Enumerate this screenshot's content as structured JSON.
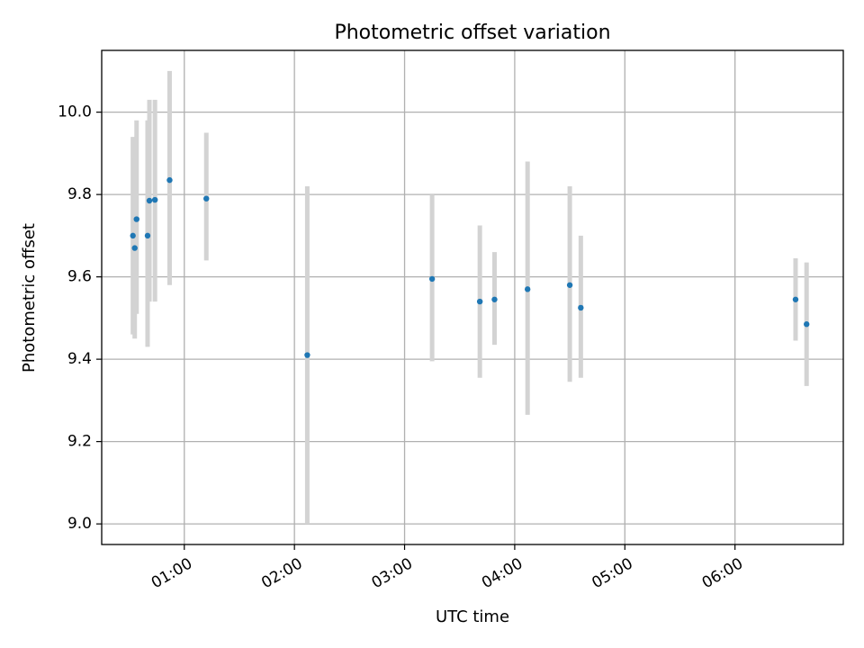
{
  "chart_data": {
    "type": "scatter",
    "title": "Photometric offset variation",
    "xlabel": "UTC time",
    "ylabel": "Photometric offset",
    "xlim": [
      "00:15",
      "06:59"
    ],
    "ylim": [
      8.95,
      10.15
    ],
    "grid": true,
    "x_ticks": [
      "01:00",
      "02:00",
      "03:00",
      "04:00",
      "05:00",
      "06:00"
    ],
    "y_ticks": [
      "9.0",
      "9.2",
      "9.4",
      "9.6",
      "9.8",
      "10.0"
    ],
    "colors": {
      "point": "#1f77b4",
      "errorbar": "#d3d3d3",
      "grid": "#b0b0b0"
    },
    "points": [
      {
        "x": "00:32",
        "y": 9.7,
        "ylow": 9.46,
        "yhigh": 9.94
      },
      {
        "x": "00:33",
        "y": 9.67,
        "ylow": 9.45,
        "yhigh": 9.89
      },
      {
        "x": "00:34",
        "y": 9.74,
        "ylow": 9.51,
        "yhigh": 9.98
      },
      {
        "x": "00:40",
        "y": 9.7,
        "ylow": 9.43,
        "yhigh": 9.98
      },
      {
        "x": "00:41",
        "y": 9.785,
        "ylow": 9.54,
        "yhigh": 10.03
      },
      {
        "x": "00:44",
        "y": 9.787,
        "ylow": 9.54,
        "yhigh": 10.03
      },
      {
        "x": "00:52",
        "y": 9.835,
        "ylow": 9.58,
        "yhigh": 10.1
      },
      {
        "x": "01:12",
        "y": 9.79,
        "ylow": 9.64,
        "yhigh": 9.95
      },
      {
        "x": "02:07",
        "y": 9.41,
        "ylow": 9.0,
        "yhigh": 9.82
      },
      {
        "x": "03:15",
        "y": 9.595,
        "ylow": 9.395,
        "yhigh": 9.8
      },
      {
        "x": "03:41",
        "y": 9.54,
        "ylow": 9.355,
        "yhigh": 9.725
      },
      {
        "x": "03:49",
        "y": 9.545,
        "ylow": 9.435,
        "yhigh": 9.66
      },
      {
        "x": "04:07",
        "y": 9.57,
        "ylow": 9.265,
        "yhigh": 9.88
      },
      {
        "x": "04:30",
        "y": 9.58,
        "ylow": 9.345,
        "yhigh": 9.82
      },
      {
        "x": "04:36",
        "y": 9.525,
        "ylow": 9.355,
        "yhigh": 9.7
      },
      {
        "x": "06:33",
        "y": 9.545,
        "ylow": 9.445,
        "yhigh": 9.645
      },
      {
        "x": "06:39",
        "y": 9.485,
        "ylow": 9.335,
        "yhigh": 9.635
      }
    ]
  }
}
